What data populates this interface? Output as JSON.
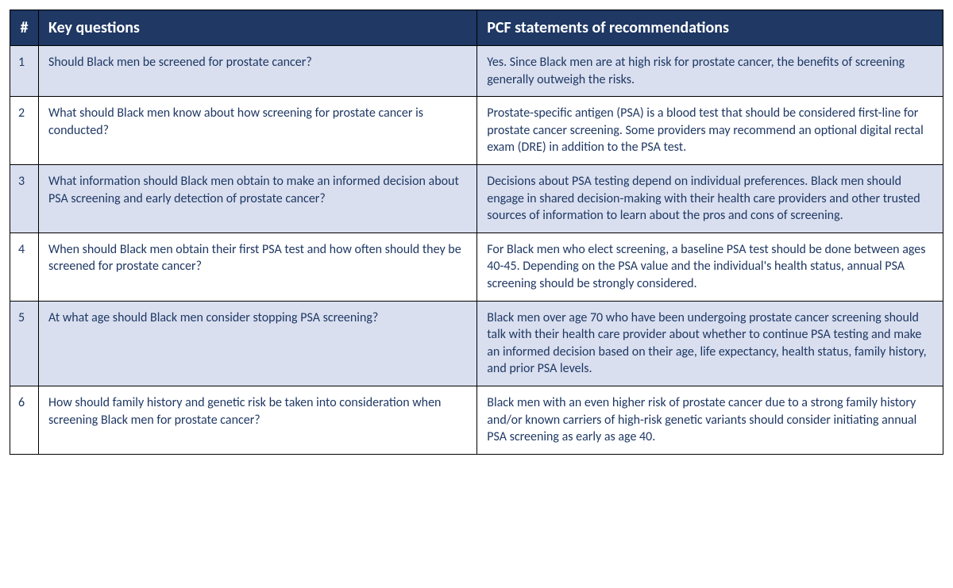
{
  "table": {
    "headers": {
      "num": "#",
      "question": "Key questions",
      "recommendation": "PCF statements of recommendations"
    },
    "rows": [
      {
        "num": "1",
        "question": "Should Black men be screened for prostate cancer?",
        "recommendation": "Yes. Since Black men are at high risk for prostate cancer, the benefits of screening generally outweigh the risks.",
        "shaded": true
      },
      {
        "num": "2",
        "question": "What should Black men know about how screening for prostate cancer is conducted?",
        "recommendation": "Prostate-specific antigen (PSA) is a blood test that should be considered first-line for prostate cancer screening. Some providers may recommend an optional digital rectal exam (DRE) in addition to the PSA test.",
        "shaded": false
      },
      {
        "num": "3",
        "question": "What information should Black men obtain to make an informed decision about PSA screening and early detection of prostate cancer?",
        "recommendation": "Decisions about PSA testing depend on individual preferences. Black men should engage in shared decision-making with their health care providers and other trusted sources of information to learn about the pros and cons of screening.",
        "shaded": true
      },
      {
        "num": "4",
        "question": "When should Black men obtain their first PSA test and how often should they be screened for prostate cancer?",
        "recommendation": "For Black men who elect screening, a baseline PSA test should be done between ages 40-45.  Depending on the PSA value and the individual's health status, annual PSA screening should be strongly considered.",
        "shaded": false
      },
      {
        "num": "5",
        "question": "At what age should Black men consider stopping PSA screening?",
        "recommendation": "Black men over age 70 who have been undergoing prostate cancer screening should talk with their health care provider about whether to continue PSA testing and make an informed decision based on their age, life expectancy, health status, family history, and prior PSA levels.",
        "shaded": true
      },
      {
        "num": "6",
        "question": "How should family history and genetic risk be taken into consideration when screening Black men for prostate cancer?",
        "recommendation": "Black men with an even higher risk of prostate cancer due to a strong family history and/or known carriers of high-risk genetic variants should consider initiating annual PSA screening as early as age 40.",
        "shaded": false
      }
    ],
    "colors": {
      "header_bg": "#1f3864",
      "header_text": "#ffffff",
      "cell_text": "#1f3864",
      "shaded_bg": "#d9dfef",
      "border": "#000000"
    },
    "fonts": {
      "header_size_pt": 15,
      "cell_size_pt": 12
    }
  }
}
